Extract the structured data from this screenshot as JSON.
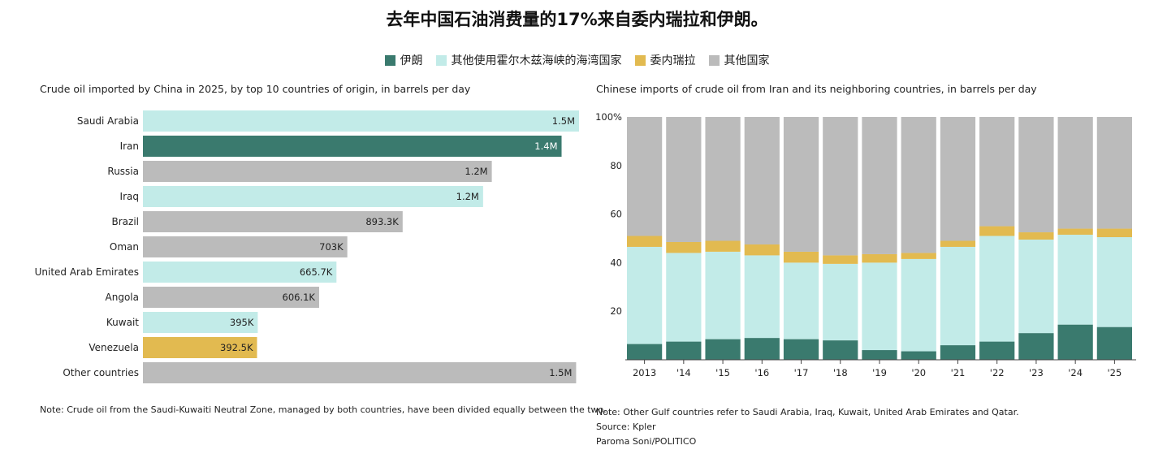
{
  "title": "去年中国石油消费量的17%来自委内瑞拉和伊朗。",
  "legend": [
    {
      "label": "伊朗",
      "color": "#3a7a6e"
    },
    {
      "label": "其他使用霍尔木兹海峡的海湾国家",
      "color": "#c2ebe8"
    },
    {
      "label": "委内瑞拉",
      "color": "#e2ba50"
    },
    {
      "label": "其他国家",
      "color": "#bbbbbb"
    }
  ],
  "left_subtitle": "Crude oil imported by China in 2025, by top 10 countries of origin, in barrels per day",
  "right_subtitle": "Chinese imports of crude oil from Iran and its neighboring countries, in barrels per day",
  "left_note": "Note: Crude oil from the Saudi-Kuwaiti Neutral Zone, managed by both countries, have been divided equally between the two.",
  "right_note": "Note: Other Gulf countries refer to Saudi Arabia, Iraq, Kuwait, United Arab Emirates and Qatar.",
  "source": "Source: Kpler",
  "credit": "Paroma Soni/POLITICO",
  "chart_data": [
    {
      "type": "bar",
      "orientation": "horizontal",
      "title": "Crude oil imported by China in 2025, by top 10 countries of origin, in barrels per day",
      "categories": [
        "Saudi Arabia",
        "Iran",
        "Russia",
        "Iraq",
        "Brazil",
        "Oman",
        "United Arab Emirates",
        "Angola",
        "Kuwait",
        "Venezuela",
        "Other countries"
      ],
      "values": [
        1500000,
        1440000,
        1200000,
        1170000,
        893300,
        703000,
        665700,
        606100,
        395000,
        392500,
        1490000
      ],
      "labels": [
        "1.5M",
        "1.4M",
        "1.2M",
        "1.2M",
        "893.3K",
        "703K",
        "665.7K",
        "606.1K",
        "395K",
        "392.5K",
        "1.5M"
      ],
      "groups": [
        "gulf",
        "iran",
        "other",
        "gulf",
        "other",
        "other",
        "gulf",
        "other",
        "gulf",
        "venezuela",
        "other"
      ],
      "colors": {
        "iran": "#3a7a6e",
        "gulf": "#c2ebe8",
        "venezuela": "#e2ba50",
        "other": "#bbbbbb"
      },
      "xlim": [
        0,
        1500000
      ]
    },
    {
      "type": "bar",
      "stacked": true,
      "title": "Chinese imports of crude oil from Iran and its neighboring countries, in barrels per day",
      "categories": [
        "2013",
        "'14",
        "'15",
        "'16",
        "'17",
        "'18",
        "'19",
        "'20",
        "'21",
        "'22",
        "'23",
        "'24",
        "'25"
      ],
      "series": [
        {
          "name": "伊朗",
          "color": "#3a7a6e",
          "values": [
            6.5,
            7.5,
            8.5,
            9,
            8.5,
            8,
            4,
            3.5,
            6,
            7.5,
            11,
            14.5,
            13.5
          ]
        },
        {
          "name": "其他使用霍尔木兹海峡的海湾国家",
          "color": "#c2ebe8",
          "values": [
            40,
            36.5,
            36,
            34,
            31.5,
            31.5,
            36,
            38,
            40.5,
            43.5,
            38.5,
            37,
            37
          ]
        },
        {
          "name": "委内瑞拉",
          "color": "#e2ba50",
          "values": [
            4.5,
            4.5,
            4.5,
            4.5,
            4.5,
            3.5,
            3.5,
            2.5,
            2.5,
            4,
            3,
            2.5,
            3.5
          ]
        },
        {
          "name": "其他国家",
          "color": "#bbbbbb",
          "values": [
            49,
            51.5,
            51,
            52.5,
            55.5,
            57,
            56.5,
            56,
            51,
            45,
            47.5,
            46,
            46
          ]
        }
      ],
      "y_ticks": [
        "20",
        "40",
        "60",
        "80",
        "100%"
      ],
      "y_tick_values": [
        20,
        40,
        60,
        80,
        100
      ],
      "ylim": [
        0,
        100
      ]
    }
  ]
}
